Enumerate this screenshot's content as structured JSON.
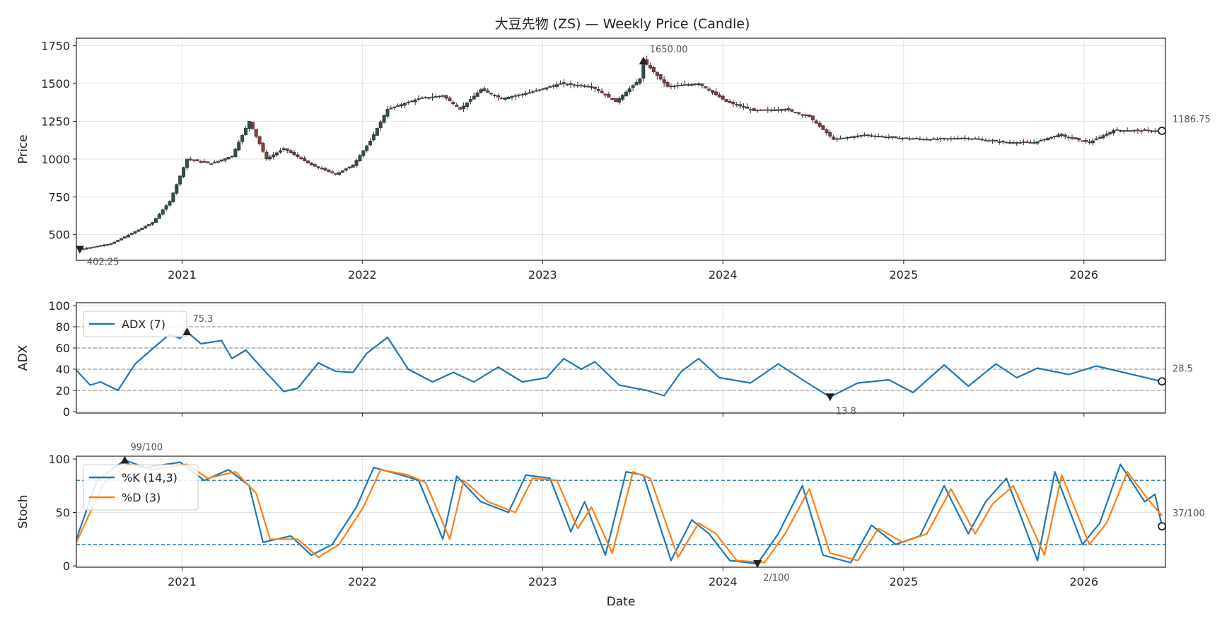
{
  "chart_data": [
    {
      "type": "candlestick",
      "title": "大豆先物 (ZS) — Weekly Price (Candle)",
      "ylabel": "Price",
      "ylim": [
        330,
        1800
      ],
      "yticks": [
        500,
        750,
        1000,
        1250,
        1500,
        1750
      ],
      "xticks": [
        "2021",
        "2022",
        "2023",
        "2024",
        "2025",
        "2026"
      ],
      "xrange": [
        "2020-06-01",
        "2026-06-15"
      ],
      "grid": true,
      "close_path": [
        [
          "2020-06-08",
          402
        ],
        [
          "2020-08-10",
          440
        ],
        [
          "2020-09-28",
          520
        ],
        [
          "2020-11-02",
          580
        ],
        [
          "2020-12-07",
          720
        ],
        [
          "2021-01-11",
          1000
        ],
        [
          "2021-03-01",
          970
        ],
        [
          "2021-04-12",
          1020
        ],
        [
          "2021-05-17",
          1250
        ],
        [
          "2021-06-21",
          1000
        ],
        [
          "2021-07-26",
          1070
        ],
        [
          "2021-09-20",
          960
        ],
        [
          "2021-11-08",
          900
        ],
        [
          "2021-12-13",
          960
        ],
        [
          "2022-01-17",
          1120
        ],
        [
          "2022-02-21",
          1330
        ],
        [
          "2022-04-25",
          1400
        ],
        [
          "2022-06-13",
          1420
        ],
        [
          "2022-07-18",
          1330
        ],
        [
          "2022-08-29",
          1460
        ],
        [
          "2022-10-10",
          1400
        ],
        [
          "2022-12-05",
          1440
        ],
        [
          "2023-02-06",
          1500
        ],
        [
          "2023-04-10",
          1480
        ],
        [
          "2023-05-29",
          1380
        ],
        [
          "2023-07-17",
          1530
        ],
        [
          "2023-07-24",
          1650
        ],
        [
          "2023-09-11",
          1480
        ],
        [
          "2023-11-13",
          1500
        ],
        [
          "2024-01-08",
          1380
        ],
        [
          "2024-03-04",
          1320
        ],
        [
          "2024-05-06",
          1330
        ],
        [
          "2024-06-24",
          1280
        ],
        [
          "2024-08-12",
          1130
        ],
        [
          "2024-10-14",
          1160
        ],
        [
          "2024-12-16",
          1140
        ],
        [
          "2025-02-24",
          1130
        ],
        [
          "2025-05-05",
          1140
        ],
        [
          "2025-07-28",
          1110
        ],
        [
          "2025-09-22",
          1110
        ],
        [
          "2025-11-10",
          1160
        ],
        [
          "2026-01-12",
          1110
        ],
        [
          "2026-03-02",
          1190
        ],
        [
          "2026-06-08",
          1186.75
        ]
      ],
      "annotations": [
        {
          "date": "2020-06-08",
          "value": 402.25,
          "label": "402.25",
          "marker": "down-triangle"
        },
        {
          "date": "2023-07-24",
          "value": 1650,
          "label": "1650.00",
          "marker": "up-triangle"
        },
        {
          "date": "2026-06-08",
          "value": 1186.75,
          "label": "1186.75",
          "marker": "circle"
        }
      ]
    },
    {
      "type": "line",
      "ylabel": "ADX",
      "ylim": [
        0,
        100
      ],
      "yticks": [
        0,
        20,
        40,
        60,
        80,
        100
      ],
      "hlines": [
        20,
        40,
        60,
        80
      ],
      "legend_position": "upper-left",
      "series": [
        {
          "name": "ADX (7)",
          "color": "#1f77b4",
          "points": [
            [
              "2020-06-01",
              39
            ],
            [
              "2020-06-29",
              25
            ],
            [
              "2020-07-20",
              28
            ],
            [
              "2020-08-24",
              20
            ],
            [
              "2020-09-28",
              45
            ],
            [
              "2020-11-09",
              62
            ],
            [
              "2020-12-07",
              73
            ],
            [
              "2020-12-28",
              69
            ],
            [
              "2021-01-11",
              75.3
            ],
            [
              "2021-02-08",
              64
            ],
            [
              "2021-03-22",
              67
            ],
            [
              "2021-04-12",
              50
            ],
            [
              "2021-05-10",
              58
            ],
            [
              "2021-06-14",
              40
            ],
            [
              "2021-07-26",
              19
            ],
            [
              "2021-08-23",
              22
            ],
            [
              "2021-10-04",
              46
            ],
            [
              "2021-11-08",
              38
            ],
            [
              "2021-12-13",
              37
            ],
            [
              "2022-01-10",
              55
            ],
            [
              "2022-02-21",
              70
            ],
            [
              "2022-04-04",
              40
            ],
            [
              "2022-05-23",
              28
            ],
            [
              "2022-07-04",
              37
            ],
            [
              "2022-08-15",
              28
            ],
            [
              "2022-10-03",
              42
            ],
            [
              "2022-11-21",
              28
            ],
            [
              "2023-01-09",
              32
            ],
            [
              "2023-02-13",
              50
            ],
            [
              "2023-03-20",
              40
            ],
            [
              "2023-04-17",
              47
            ],
            [
              "2023-06-05",
              25
            ],
            [
              "2023-07-31",
              20
            ],
            [
              "2023-09-04",
              15
            ],
            [
              "2023-10-09",
              38
            ],
            [
              "2023-11-13",
              50
            ],
            [
              "2023-12-25",
              32
            ],
            [
              "2024-02-26",
              27
            ],
            [
              "2024-04-22",
              45
            ],
            [
              "2024-06-17",
              28
            ],
            [
              "2024-08-05",
              13.8
            ],
            [
              "2024-09-30",
              27
            ],
            [
              "2024-12-02",
              30
            ],
            [
              "2025-01-20",
              18
            ],
            [
              "2025-03-24",
              44
            ],
            [
              "2025-05-12",
              24
            ],
            [
              "2025-07-07",
              45
            ],
            [
              "2025-08-18",
              32
            ],
            [
              "2025-09-29",
              41
            ],
            [
              "2025-12-01",
              35
            ],
            [
              "2026-01-26",
              43
            ],
            [
              "2026-06-08",
              28.5
            ]
          ]
        }
      ],
      "annotations": [
        {
          "date": "2021-01-11",
          "value": 75.3,
          "label": "75.3",
          "marker": "up-triangle"
        },
        {
          "date": "2024-08-05",
          "value": 13.8,
          "label": "13.8",
          "marker": "down-triangle"
        },
        {
          "date": "2026-06-08",
          "value": 28.5,
          "label": "28.5",
          "marker": "circle"
        }
      ]
    },
    {
      "type": "line",
      "xlabel": "Date",
      "ylabel": "Stoch",
      "ylim": [
        0,
        100
      ],
      "yticks": [
        0,
        50,
        100
      ],
      "xticks": [
        "2021",
        "2022",
        "2023",
        "2024",
        "2025",
        "2026"
      ],
      "hlines": [
        20,
        80
      ],
      "legend_position": "upper-left",
      "series": [
        {
          "name": "%K (14,3)",
          "color": "#1f77b4",
          "points": [
            [
              "2020-06-01",
              25
            ],
            [
              "2020-07-13",
              80
            ],
            [
              "2020-09-07",
              99
            ],
            [
              "2020-10-19",
              92
            ],
            [
              "2020-12-28",
              97
            ],
            [
              "2021-02-15",
              80
            ],
            [
              "2021-04-05",
              90
            ],
            [
              "2021-05-17",
              75
            ],
            [
              "2021-06-14",
              22
            ],
            [
              "2021-08-09",
              28
            ],
            [
              "2021-09-20",
              10
            ],
            [
              "2021-11-01",
              20
            ],
            [
              "2021-12-20",
              55
            ],
            [
              "2022-01-24",
              92
            ],
            [
              "2022-03-21",
              85
            ],
            [
              "2022-04-25",
              80
            ],
            [
              "2022-06-13",
              25
            ],
            [
              "2022-07-11",
              84
            ],
            [
              "2022-08-29",
              60
            ],
            [
              "2022-10-24",
              50
            ],
            [
              "2022-11-28",
              85
            ],
            [
              "2023-01-16",
              82
            ],
            [
              "2023-02-27",
              32
            ],
            [
              "2023-03-27",
              60
            ],
            [
              "2023-05-08",
              10
            ],
            [
              "2023-06-19",
              88
            ],
            [
              "2023-07-24",
              85
            ],
            [
              "2023-09-18",
              5
            ],
            [
              "2023-10-30",
              43
            ],
            [
              "2023-12-04",
              30
            ],
            [
              "2024-01-15",
              5
            ],
            [
              "2024-03-11",
              2
            ],
            [
              "2024-04-22",
              30
            ],
            [
              "2024-06-10",
              75
            ],
            [
              "2024-07-22",
              10
            ],
            [
              "2024-09-16",
              3
            ],
            [
              "2024-10-28",
              38
            ],
            [
              "2024-12-16",
              20
            ],
            [
              "2025-02-03",
              28
            ],
            [
              "2025-03-24",
              75
            ],
            [
              "2025-05-12",
              30
            ],
            [
              "2025-06-16",
              60
            ],
            [
              "2025-07-28",
              82
            ],
            [
              "2025-09-29",
              5
            ],
            [
              "2025-11-03",
              88
            ],
            [
              "2025-12-29",
              20
            ],
            [
              "2026-02-02",
              40
            ],
            [
              "2026-03-16",
              95
            ],
            [
              "2026-05-04",
              60
            ],
            [
              "2026-05-25",
              67
            ],
            [
              "2026-06-08",
              37
            ]
          ]
        },
        {
          "name": "%D (3)",
          "color": "#ff7f0e",
          "points": [
            [
              "2020-06-01",
              22
            ],
            [
              "2020-07-27",
              78
            ],
            [
              "2020-09-14",
              95
            ],
            [
              "2020-11-02",
              90
            ],
            [
              "2021-01-11",
              95
            ],
            [
              "2021-02-22",
              82
            ],
            [
              "2021-04-19",
              88
            ],
            [
              "2021-05-31",
              68
            ],
            [
              "2021-06-28",
              25
            ],
            [
              "2021-08-23",
              25
            ],
            [
              "2021-10-04",
              8
            ],
            [
              "2021-11-15",
              20
            ],
            [
              "2022-01-03",
              55
            ],
            [
              "2022-02-07",
              90
            ],
            [
              "2022-04-04",
              85
            ],
            [
              "2022-05-09",
              78
            ],
            [
              "2022-06-27",
              25
            ],
            [
              "2022-07-25",
              80
            ],
            [
              "2022-09-12",
              60
            ],
            [
              "2022-11-07",
              50
            ],
            [
              "2022-12-12",
              82
            ],
            [
              "2023-01-30",
              80
            ],
            [
              "2023-03-13",
              35
            ],
            [
              "2023-04-10",
              55
            ],
            [
              "2023-05-22",
              12
            ],
            [
              "2023-07-03",
              88
            ],
            [
              "2023-08-07",
              82
            ],
            [
              "2023-10-02",
              8
            ],
            [
              "2023-11-13",
              40
            ],
            [
              "2023-12-18",
              30
            ],
            [
              "2024-01-29",
              5
            ],
            [
              "2024-03-25",
              3
            ],
            [
              "2024-05-06",
              30
            ],
            [
              "2024-06-24",
              72
            ],
            [
              "2024-08-05",
              12
            ],
            [
              "2024-09-30",
              5
            ],
            [
              "2024-11-11",
              35
            ],
            [
              "2024-12-30",
              22
            ],
            [
              "2025-02-17",
              30
            ],
            [
              "2025-04-07",
              72
            ],
            [
              "2025-05-26",
              30
            ],
            [
              "2025-06-30",
              58
            ],
            [
              "2025-08-11",
              75
            ],
            [
              "2025-10-13",
              10
            ],
            [
              "2025-11-17",
              85
            ],
            [
              "2026-01-12",
              20
            ],
            [
              "2026-02-16",
              40
            ],
            [
              "2026-03-30",
              88
            ],
            [
              "2026-05-11",
              62
            ],
            [
              "2026-06-08",
              47
            ]
          ]
        }
      ],
      "annotations": [
        {
          "date": "2020-09-07",
          "value": 99,
          "label": "99/100",
          "marker": "up-triangle"
        },
        {
          "date": "2024-03-11",
          "value": 2,
          "label": "2/100",
          "marker": "down-triangle"
        },
        {
          "date": "2026-06-08",
          "value": 37,
          "label": "37/100",
          "marker": "circle"
        }
      ]
    }
  ]
}
